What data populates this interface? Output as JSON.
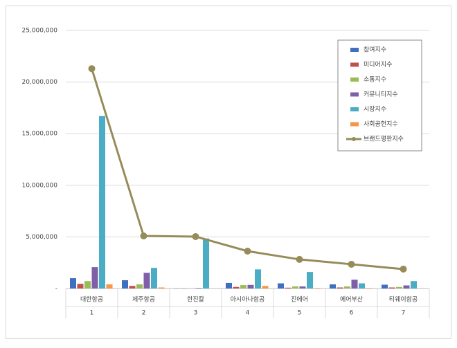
{
  "chart_data": {
    "type": "bar",
    "categories": [
      "대한항공",
      "제주항공",
      "한진칼",
      "아시아나항공",
      "진에어",
      "에어부산",
      "티웨이항공"
    ],
    "category_ranks": [
      "1",
      "2",
      "3",
      "4",
      "5",
      "6",
      "7"
    ],
    "ylim": [
      0,
      25000000
    ],
    "yticks": [
      {
        "value": 0,
        "label": "-"
      },
      {
        "value": 5000000,
        "label": "5,000,000"
      },
      {
        "value": 10000000,
        "label": "10,000,000"
      },
      {
        "value": 15000000,
        "label": "15,000,000"
      },
      {
        "value": 20000000,
        "label": "20,000,000"
      },
      {
        "value": 25000000,
        "label": "25,000,000"
      }
    ],
    "grid": true,
    "legend": "upper right",
    "series": [
      {
        "name": "참여지수",
        "color": "#3f6fc0",
        "values": [
          1000000,
          800000,
          20000,
          540000,
          500000,
          400000,
          370000
        ]
      },
      {
        "name": "미디어지수",
        "color": "#c0504d",
        "values": [
          450000,
          250000,
          20000,
          150000,
          80000,
          100000,
          100000
        ]
      },
      {
        "name": "소통지수",
        "color": "#9bbb59",
        "values": [
          720000,
          400000,
          10000,
          330000,
          200000,
          200000,
          150000
        ]
      },
      {
        "name": "커뮤니티지수",
        "color": "#7f5fa7",
        "values": [
          2070000,
          1520000,
          50000,
          350000,
          200000,
          850000,
          300000
        ]
      },
      {
        "name": "시장지수",
        "color": "#4bacc6",
        "values": [
          16700000,
          2000000,
          4850000,
          1850000,
          1600000,
          500000,
          720000
        ]
      },
      {
        "name": "사회공헌지수",
        "color": "#f79646",
        "values": [
          400000,
          100000,
          0,
          250000,
          50000,
          50000,
          20000
        ]
      },
      {
        "name": "브랜드평판지수",
        "color": "#968c5a",
        "type": "line",
        "values": [
          21300000,
          5090000,
          5030000,
          3620000,
          2820000,
          2350000,
          1880000
        ]
      }
    ]
  }
}
